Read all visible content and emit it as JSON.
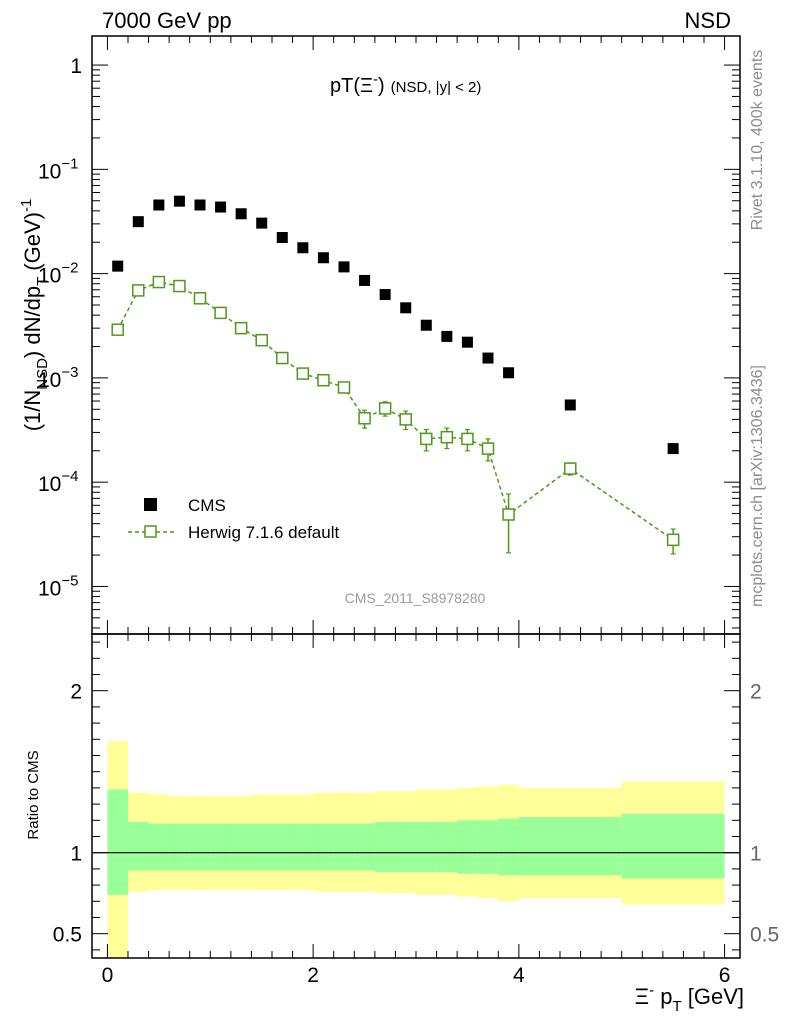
{
  "header": {
    "left": "7000 GeV pp",
    "right": "NSD"
  },
  "side_labels": {
    "right_top": "Rivet 3.1.10,  400k events",
    "right_bottom": "mcplots.cern.ch [arXiv:1306.3436]"
  },
  "watermark": "CMS_2011_S8978280",
  "colors": {
    "data": "#000000",
    "mc": "#4c9a1a",
    "band_inner": "#99ff99",
    "band_outer": "#ffff99"
  },
  "chart_data": [
    {
      "type": "scatter",
      "title": {
        "main": "pT(Ξ",
        "sup": "-",
        "close": ")",
        "small": "(NSD, |y| < 2)"
      },
      "ylabel": {
        "a": "(1/N",
        "a_sub": "NSD",
        "b": ") dN/dp",
        "b_sub": "T",
        "c": "(GeV)",
        "c_sup": "-1"
      },
      "yscale": "log",
      "ylim": [
        3.5e-06,
        1.9
      ],
      "xlim": [
        -0.15,
        6.15
      ],
      "y_ticks": [
        {
          "value": 1,
          "base": "1",
          "exp": ""
        },
        {
          "value": 0.1,
          "base": "10",
          "exp": "−1"
        },
        {
          "value": 0.01,
          "base": "10",
          "exp": "−2"
        },
        {
          "value": 0.001,
          "base": "10",
          "exp": "−3"
        },
        {
          "value": 0.0001,
          "base": "10",
          "exp": "−4"
        },
        {
          "value": 1e-05,
          "base": "10",
          "exp": "−5"
        }
      ],
      "legend_position": "bottom-left",
      "series": [
        {
          "name": "CMS",
          "marker": "filled-square",
          "x": [
            0.1,
            0.3,
            0.5,
            0.7,
            0.9,
            1.1,
            1.3,
            1.5,
            1.7,
            1.9,
            2.1,
            2.3,
            2.5,
            2.7,
            2.9,
            3.1,
            3.3,
            3.5,
            3.7,
            3.9,
            4.5,
            5.5
          ],
          "y": [
            0.0118,
            0.0315,
            0.0455,
            0.0495,
            0.0455,
            0.0435,
            0.0375,
            0.0305,
            0.0222,
            0.0177,
            0.0142,
            0.0116,
            0.0086,
            0.0063,
            0.0047,
            0.0032,
            0.0025,
            0.0022,
            0.00155,
            0.00112,
            0.00055,
            0.00021
          ]
        },
        {
          "name": "Herwig 7.1.6 default",
          "marker": "open-square",
          "line": "dashed",
          "x": [
            0.1,
            0.3,
            0.5,
            0.7,
            0.9,
            1.1,
            1.3,
            1.5,
            1.7,
            1.9,
            2.1,
            2.3,
            2.5,
            2.7,
            2.9,
            3.1,
            3.3,
            3.5,
            3.7,
            3.9,
            4.5,
            5.5
          ],
          "y": [
            0.0029,
            0.0069,
            0.0083,
            0.0076,
            0.0058,
            0.0042,
            0.003,
            0.0023,
            0.00155,
            0.0011,
            0.00095,
            0.00081,
            0.00041,
            0.00051,
            0.0004,
            0.00026,
            0.00027,
            0.00026,
            0.00021,
            4.9e-05,
            0.000135,
            2.8e-05
          ],
          "yerr": [
            0.00015,
            0.00025,
            0.0003,
            0.0003,
            0.00025,
            0.0002,
            0.00016,
            0.00013,
            0.0001,
            8e-05,
            8e-05,
            9e-05,
            8e-05,
            8e-05,
            8e-05,
            6e-05,
            6e-05,
            6e-05,
            5e-05,
            2.8e-05,
            1.8e-05,
            7.5e-06
          ]
        }
      ]
    },
    {
      "type": "area",
      "ylabel": "Ratio to CMS",
      "xlabel": {
        "sym": "Ξ",
        "sup": "-",
        "text": " p",
        "sub": "T",
        "unit": " [GeV]"
      },
      "xlim": [
        -0.15,
        6.15
      ],
      "ylim": [
        0.35,
        2.35
      ],
      "x_ticks": [
        {
          "value": 0,
          "label": "0"
        },
        {
          "value": 2,
          "label": "2"
        },
        {
          "value": 4,
          "label": "4"
        },
        {
          "value": 6,
          "label": "6"
        }
      ],
      "y_ticks": [
        {
          "value": 0.5,
          "label": "0.5"
        },
        {
          "value": 1,
          "label": "1"
        },
        {
          "value": 2,
          "label": "2"
        }
      ],
      "bins": [
        {
          "lo": 0.0,
          "hi": 0.2,
          "inner": [
            0.74,
            1.39
          ],
          "outer": [
            0.0,
            1.69
          ]
        },
        {
          "lo": 0.2,
          "hi": 0.4,
          "inner": [
            0.89,
            1.19
          ],
          "outer": [
            0.76,
            1.37
          ]
        },
        {
          "lo": 0.4,
          "hi": 0.6,
          "inner": [
            0.89,
            1.18
          ],
          "outer": [
            0.77,
            1.36
          ]
        },
        {
          "lo": 0.6,
          "hi": 0.8,
          "inner": [
            0.89,
            1.18
          ],
          "outer": [
            0.77,
            1.35
          ]
        },
        {
          "lo": 0.8,
          "hi": 1.0,
          "inner": [
            0.89,
            1.18
          ],
          "outer": [
            0.77,
            1.35
          ]
        },
        {
          "lo": 1.0,
          "hi": 1.2,
          "inner": [
            0.89,
            1.18
          ],
          "outer": [
            0.77,
            1.35
          ]
        },
        {
          "lo": 1.2,
          "hi": 1.4,
          "inner": [
            0.89,
            1.18
          ],
          "outer": [
            0.77,
            1.35
          ]
        },
        {
          "lo": 1.4,
          "hi": 1.6,
          "inner": [
            0.89,
            1.18
          ],
          "outer": [
            0.77,
            1.36
          ]
        },
        {
          "lo": 1.6,
          "hi": 1.8,
          "inner": [
            0.89,
            1.18
          ],
          "outer": [
            0.77,
            1.36
          ]
        },
        {
          "lo": 1.8,
          "hi": 2.0,
          "inner": [
            0.89,
            1.18
          ],
          "outer": [
            0.77,
            1.36
          ]
        },
        {
          "lo": 2.0,
          "hi": 2.2,
          "inner": [
            0.89,
            1.18
          ],
          "outer": [
            0.76,
            1.37
          ]
        },
        {
          "lo": 2.2,
          "hi": 2.4,
          "inner": [
            0.89,
            1.18
          ],
          "outer": [
            0.76,
            1.37
          ]
        },
        {
          "lo": 2.4,
          "hi": 2.6,
          "inner": [
            0.89,
            1.18
          ],
          "outer": [
            0.76,
            1.37
          ]
        },
        {
          "lo": 2.6,
          "hi": 2.8,
          "inner": [
            0.88,
            1.19
          ],
          "outer": [
            0.75,
            1.38
          ]
        },
        {
          "lo": 2.8,
          "hi": 3.0,
          "inner": [
            0.88,
            1.19
          ],
          "outer": [
            0.75,
            1.38
          ]
        },
        {
          "lo": 3.0,
          "hi": 3.2,
          "inner": [
            0.88,
            1.19
          ],
          "outer": [
            0.74,
            1.39
          ]
        },
        {
          "lo": 3.2,
          "hi": 3.4,
          "inner": [
            0.88,
            1.19
          ],
          "outer": [
            0.74,
            1.39
          ]
        },
        {
          "lo": 3.4,
          "hi": 3.6,
          "inner": [
            0.87,
            1.2
          ],
          "outer": [
            0.73,
            1.4
          ]
        },
        {
          "lo": 3.6,
          "hi": 3.8,
          "inner": [
            0.87,
            1.2
          ],
          "outer": [
            0.72,
            1.41
          ]
        },
        {
          "lo": 3.8,
          "hi": 4.0,
          "inner": [
            0.86,
            1.21
          ],
          "outer": [
            0.7,
            1.42
          ]
        },
        {
          "lo": 4.0,
          "hi": 5.0,
          "inner": [
            0.86,
            1.22
          ],
          "outer": [
            0.72,
            1.4
          ]
        },
        {
          "lo": 5.0,
          "hi": 6.0,
          "inner": [
            0.84,
            1.24
          ],
          "outer": [
            0.68,
            1.44
          ]
        }
      ]
    }
  ]
}
